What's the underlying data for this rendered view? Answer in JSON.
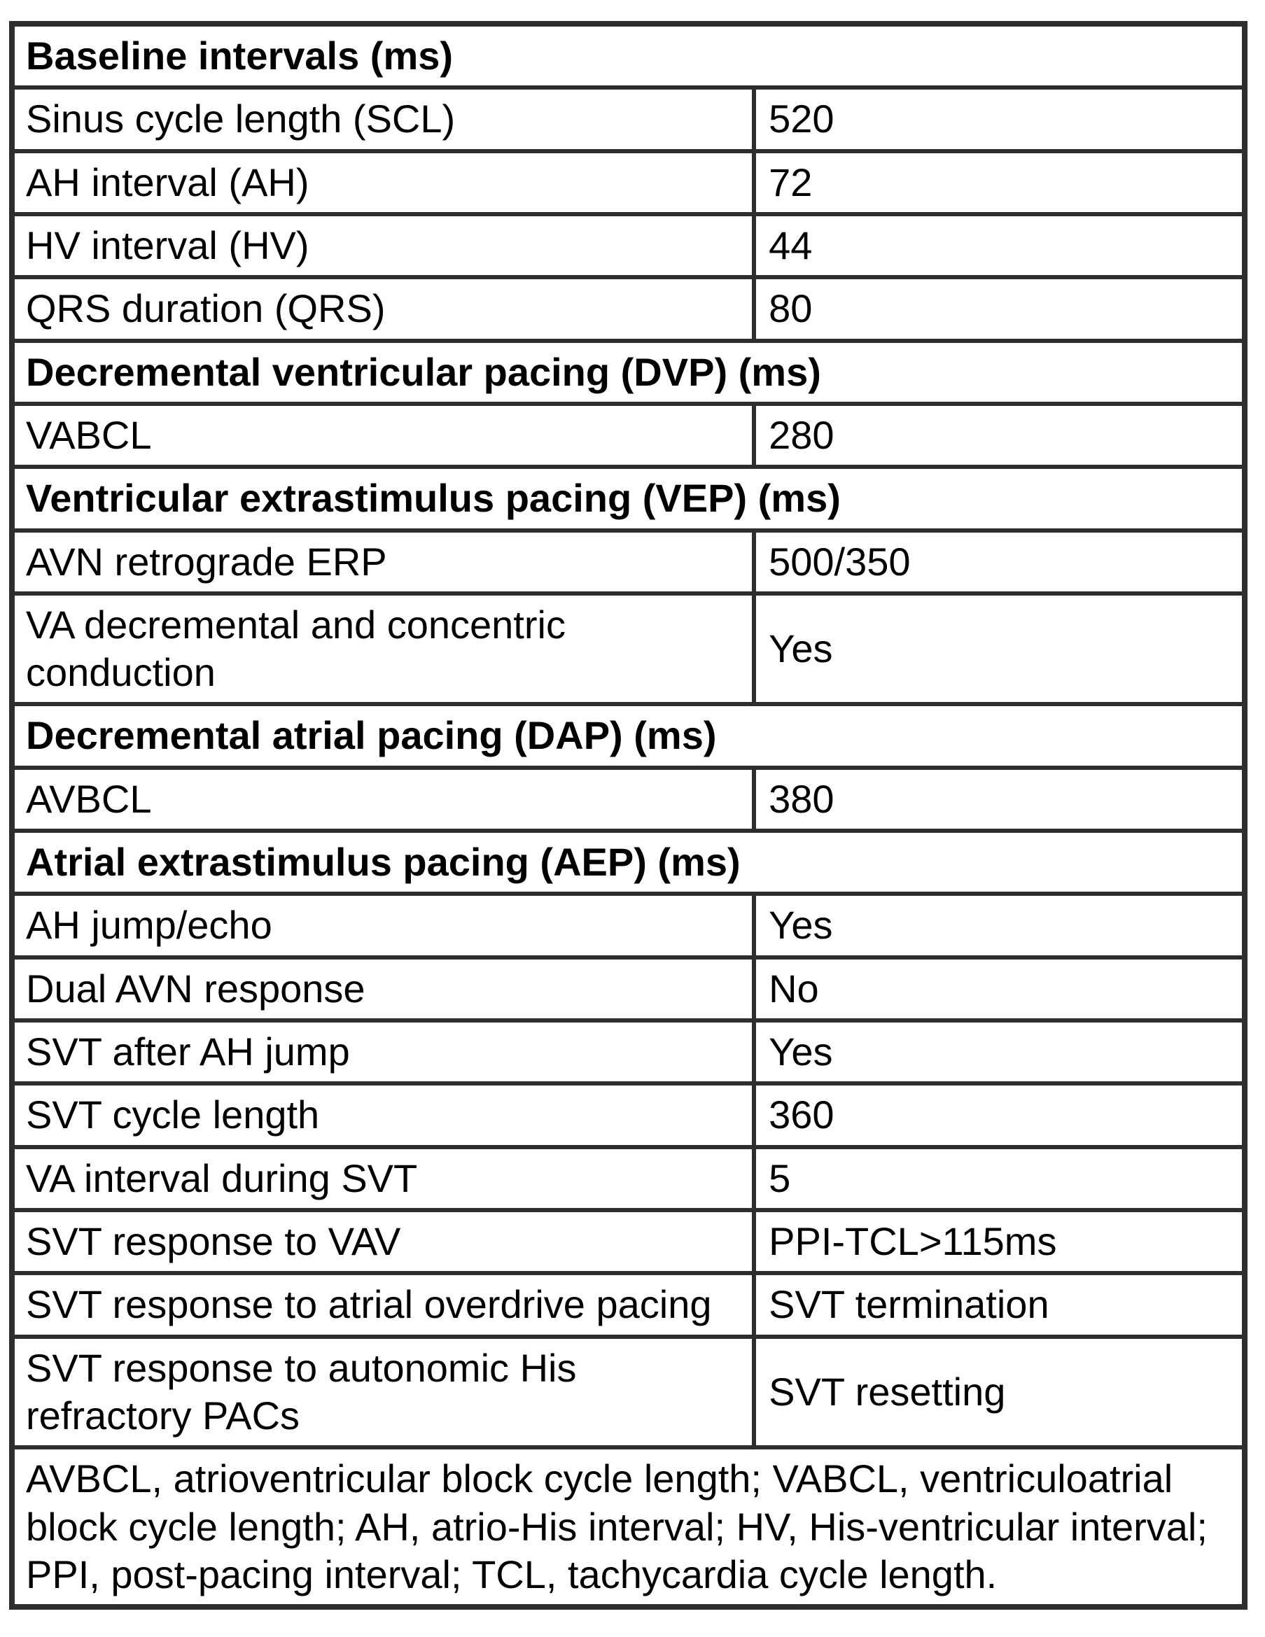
{
  "page": {
    "background": "#ffffff",
    "border_color": "#2e2e2e",
    "text_color": "#000000"
  },
  "table": {
    "sections": [
      {
        "title": "Baseline intervals (ms)",
        "rows": [
          {
            "label": "Sinus cycle length (SCL)",
            "value": "520"
          },
          {
            "label": "AH interval (AH)",
            "value": "72"
          },
          {
            "label": "HV interval (HV)",
            "value": "44"
          },
          {
            "label": "QRS duration (QRS)",
            "value": "80"
          }
        ]
      },
      {
        "title": "Decremental ventricular pacing (DVP) (ms)",
        "rows": [
          {
            "label": "VABCL",
            "value": "280"
          }
        ]
      },
      {
        "title": "Ventricular extrastimulus pacing (VEP) (ms)",
        "rows": [
          {
            "label": "AVN retrograde ERP",
            "value": "500/350"
          },
          {
            "label": "VA decremental and concentric conduction",
            "value": "Yes"
          }
        ]
      },
      {
        "title": "Decremental atrial pacing (DAP) (ms)",
        "rows": [
          {
            "label": "AVBCL",
            "value": "380"
          }
        ]
      },
      {
        "title": "Atrial extrastimulus pacing (AEP) (ms)",
        "rows": [
          {
            "label": "AH jump/echo",
            "value": "Yes"
          },
          {
            "label": "Dual AVN response",
            "value": "No"
          },
          {
            "label": "SVT after AH jump",
            "value": "Yes"
          },
          {
            "label": "SVT cycle length",
            "value": "360"
          },
          {
            "label": "VA interval during SVT",
            "value": "5"
          },
          {
            "label": "SVT response to VAV",
            "value": "PPI-TCL>115ms"
          },
          {
            "label": "SVT response to atrial overdrive pacing",
            "value": "SVT termination"
          },
          {
            "label": "SVT response to autonomic His refractory PACs",
            "value": "SVT resetting"
          }
        ]
      }
    ],
    "footnote": "AVBCL, atrioventricular block cycle length; VABCL, ventriculoatrial block cycle length; AH, atrio-His interval; HV, His-ventricular interval; PPI, post-pacing interval; TCL, tachycardia cycle length."
  }
}
